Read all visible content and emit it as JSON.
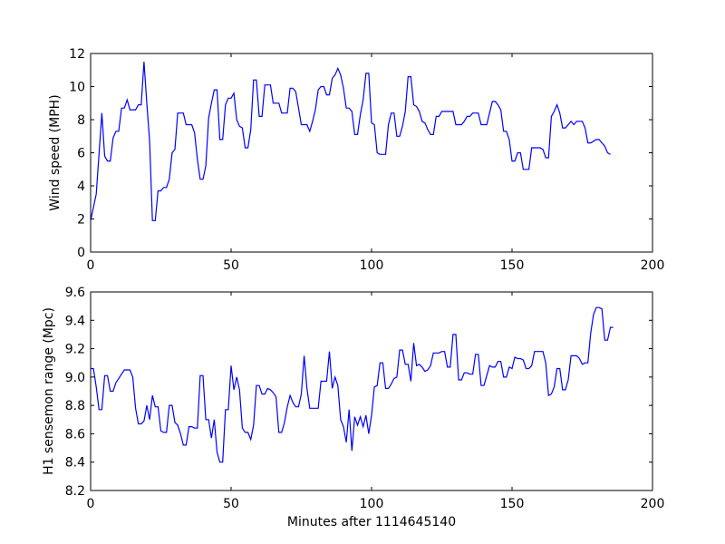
{
  "chart_data": [
    {
      "type": "line",
      "ylabel": "Wind speed (MPH)",
      "color": "#0000ff",
      "xlim": [
        0,
        200
      ],
      "xticks": [
        0,
        50,
        100,
        150,
        200
      ],
      "ylim": [
        0,
        12
      ],
      "yticks": [
        0,
        2,
        4,
        6,
        8,
        10,
        12
      ],
      "x": [
        0,
        2,
        4,
        5,
        6,
        7,
        8,
        9,
        10,
        11,
        12,
        13,
        14,
        16,
        17,
        18,
        19,
        20,
        21,
        22,
        23,
        24,
        25,
        26,
        27,
        28,
        29,
        30,
        31,
        33,
        34,
        36,
        37,
        38,
        39,
        40,
        41,
        42,
        43,
        44,
        45,
        46,
        47,
        48,
        49,
        50,
        51,
        52,
        53,
        54,
        55,
        56,
        57,
        58,
        59,
        60,
        61,
        62,
        64,
        65,
        67,
        68,
        70,
        71,
        72,
        73,
        74,
        75,
        77,
        78,
        79,
        80,
        81,
        82,
        83,
        84,
        85,
        86,
        87,
        88,
        89,
        90,
        91,
        92,
        93,
        94,
        95,
        96,
        97,
        98,
        99,
        100,
        101,
        102,
        103,
        105,
        106,
        107,
        108,
        109,
        110,
        111,
        112,
        113,
        114,
        115,
        116,
        117,
        118,
        119,
        120,
        121,
        122,
        123,
        124,
        125,
        129,
        130,
        132,
        133,
        134,
        135,
        136,
        138,
        139,
        141,
        142,
        143,
        144,
        145,
        146,
        147,
        148,
        149,
        150,
        151,
        152,
        153,
        154,
        156,
        157,
        160,
        161,
        162,
        163,
        164,
        165,
        166,
        167,
        168,
        169,
        170,
        171,
        172,
        173,
        175,
        176,
        177,
        178,
        180,
        181,
        182,
        183,
        184,
        185
      ],
      "values": [
        1.9,
        3.5,
        8.4,
        5.8,
        5.5,
        5.5,
        6.9,
        7.3,
        7.3,
        8.7,
        8.7,
        9.2,
        8.6,
        8.6,
        8.9,
        8.9,
        11.5,
        9,
        6.7,
        1.9,
        1.9,
        3.7,
        3.7,
        3.9,
        3.9,
        4.4,
        6,
        6.2,
        8.4,
        8.4,
        7.7,
        7.7,
        7.2,
        5.6,
        4.4,
        4.4,
        5.2,
        8.1,
        9,
        9.8,
        9.8,
        6.8,
        6.8,
        8.9,
        9.3,
        9.3,
        9.6,
        8,
        7.6,
        7.5,
        6.3,
        6.3,
        7.4,
        10.4,
        10.4,
        8.2,
        8.2,
        10.1,
        10.1,
        9,
        9,
        8.4,
        8.4,
        9.9,
        9.9,
        9.7,
        8.7,
        7.7,
        7.7,
        7.3,
        7.9,
        8.6,
        9.8,
        10,
        10,
        9.5,
        9.5,
        10.5,
        10.7,
        11.1,
        10.7,
        9.9,
        8.7,
        8.7,
        8.5,
        7.1,
        7.1,
        8.3,
        9.2,
        10.8,
        10.8,
        7.8,
        7.7,
        6,
        5.9,
        5.9,
        7.7,
        8.4,
        8.4,
        7,
        7,
        7.6,
        8.5,
        10.6,
        10.6,
        8.9,
        8.8,
        8.5,
        7.9,
        7.8,
        7.4,
        7.1,
        7.1,
        8.2,
        8.2,
        8.5,
        8.5,
        7.7,
        7.7,
        7.9,
        8.2,
        8.2,
        8.4,
        8.4,
        7.7,
        7.7,
        8.4,
        9.1,
        9.1,
        8.9,
        8.6,
        7.3,
        7.3,
        6.8,
        5.5,
        5.5,
        6,
        6,
        5,
        5,
        6.3,
        6.3,
        6.2,
        5.7,
        5.7,
        8.2,
        8.5,
        8.9,
        8.4,
        7.5,
        7.5,
        7.7,
        7.9,
        7.7,
        7.9,
        7.9,
        7.5,
        6.6,
        6.6,
        6.8,
        6.8,
        6.6,
        6.4,
        6,
        5.9
      ]
    },
    {
      "type": "line",
      "ylabel": "H1 sensemon range (Mpc)",
      "xlabel": "Minutes after 1114645140",
      "color": "#0000ff",
      "xlim": [
        0,
        200
      ],
      "xticks": [
        0,
        50,
        100,
        150,
        200
      ],
      "ylim": [
        8.2,
        9.6
      ],
      "yticks": [
        8.2,
        8.4,
        8.6,
        8.8,
        {
          "value": 9,
          "label": "9.0"
        },
        9.2,
        9.4,
        9.6
      ],
      "x": [
        0,
        1,
        2,
        3,
        4,
        5,
        6,
        7,
        8,
        9,
        10,
        11,
        12,
        13,
        14,
        15,
        16,
        17,
        18,
        19,
        20,
        21,
        22,
        23,
        24,
        25,
        26,
        27,
        28,
        29,
        30,
        31,
        32,
        33,
        34,
        35,
        36,
        37,
        38,
        39,
        40,
        41,
        42,
        43,
        44,
        45,
        46,
        47,
        48,
        49,
        50,
        51,
        52,
        53,
        54,
        55,
        56,
        57,
        58,
        59,
        60,
        61,
        62,
        63,
        64,
        65,
        66,
        67,
        68,
        69,
        70,
        71,
        72,
        73,
        74,
        75,
        76,
        77,
        78,
        79,
        80,
        81,
        82,
        83,
        84,
        85,
        86,
        87,
        88,
        89,
        90,
        91,
        92,
        93,
        94,
        95,
        96,
        97,
        98,
        99,
        100,
        101,
        102,
        103,
        104,
        105,
        106,
        107,
        108,
        109,
        110,
        111,
        112,
        113,
        114,
        115,
        116,
        117,
        118,
        119,
        120,
        121,
        122,
        123,
        124,
        125,
        126,
        127,
        128,
        129,
        130,
        131,
        132,
        133,
        134,
        135,
        136,
        137,
        138,
        139,
        140,
        141,
        142,
        143,
        144,
        145,
        146,
        147,
        148,
        149,
        150,
        151,
        152,
        153,
        154,
        155,
        156,
        157,
        158,
        159,
        160,
        161,
        162,
        163,
        164,
        165,
        166,
        167,
        168,
        169,
        170,
        171,
        172,
        173,
        174,
        175,
        176,
        177,
        178,
        179,
        180,
        181,
        182,
        183,
        184,
        185,
        186
      ],
      "values": [
        9.06,
        9.06,
        8.93,
        8.77,
        8.77,
        9.01,
        9.01,
        8.9,
        8.9,
        8.96,
        8.99,
        9.02,
        9.05,
        9.05,
        9.05,
        9.0,
        8.78,
        8.67,
        8.67,
        8.69,
        8.8,
        8.7,
        8.87,
        8.79,
        8.79,
        8.62,
        8.61,
        8.61,
        8.8,
        8.8,
        8.68,
        8.66,
        8.6,
        8.52,
        8.52,
        8.65,
        8.65,
        8.64,
        8.64,
        9.01,
        9.01,
        8.7,
        8.7,
        8.57,
        8.7,
        8.47,
        8.4,
        8.4,
        8.77,
        8.77,
        9.08,
        8.91,
        9.0,
        8.91,
        8.64,
        8.61,
        8.61,
        8.56,
        8.66,
        8.94,
        8.94,
        8.88,
        8.88,
        8.92,
        8.91,
        8.89,
        8.86,
        8.61,
        8.61,
        8.68,
        8.79,
        8.87,
        8.82,
        8.79,
        8.79,
        8.88,
        9.15,
        8.92,
        8.78,
        8.78,
        8.78,
        8.78,
        8.97,
        8.97,
        8.97,
        9.18,
        8.92,
        9.0,
        8.94,
        8.7,
        8.65,
        8.54,
        8.77,
        8.48,
        8.72,
        8.66,
        8.72,
        8.65,
        8.73,
        8.6,
        8.73,
        8.93,
        8.94,
        9.1,
        9.1,
        8.92,
        8.92,
        8.95,
        8.99,
        9.0,
        9.19,
        9.19,
        9.09,
        9.09,
        8.97,
        9.24,
        9.08,
        9.09,
        9.07,
        9.04,
        9.05,
        9.08,
        9.17,
        9.17,
        9.17,
        9.18,
        9.18,
        9.07,
        9.07,
        9.3,
        9.3,
        8.98,
        8.98,
        9.03,
        9.03,
        9.02,
        9.02,
        9.16,
        9.16,
        8.94,
        8.94,
        9.01,
        9.08,
        9.07,
        9.07,
        9.11,
        9.11,
        9.0,
        9.0,
        9.07,
        9.06,
        9.14,
        9.13,
        9.13,
        9.12,
        9.06,
        9.06,
        9.08,
        9.18,
        9.18,
        9.18,
        9.18,
        9.1,
        8.87,
        8.88,
        8.93,
        9.06,
        9.06,
        8.91,
        8.91,
        8.98,
        9.15,
        9.15,
        9.15,
        9.13,
        9.09,
        9.1,
        9.1,
        9.31,
        9.44,
        9.49,
        9.49,
        9.48,
        9.26,
        9.26,
        9.35,
        9.35
      ]
    }
  ]
}
